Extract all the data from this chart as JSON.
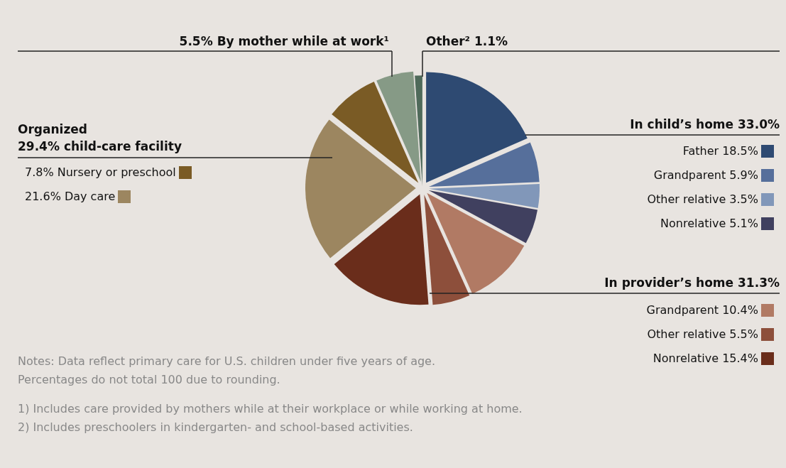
{
  "chart_data": {
    "type": "pie",
    "categories": [
      "Father",
      "Grandparent",
      "Other relative",
      "Nonrelative",
      "Grandparent",
      "Other relative",
      "Nonrelative",
      "Day care",
      "Nursery or preschool",
      "By mother while at work¹",
      "Other²"
    ],
    "values": [
      18.5,
      5.9,
      3.5,
      5.1,
      10.4,
      5.5,
      15.4,
      21.6,
      7.8,
      5.5,
      1.1
    ],
    "value_labels": [
      "18.5%",
      "5.9%",
      "3.5%",
      "5.1%",
      "10.4%",
      "5.5%",
      "15.4%",
      "21.6%",
      "7.8%",
      "5.5%",
      "1.1%"
    ],
    "colors": [
      "#2e4a72",
      "#566f9b",
      "#8197b9",
      "#40405f",
      "#b17a64",
      "#8d4f3b",
      "#6a2d1b",
      "#9c8660",
      "#7a5b25",
      "#869a86",
      "#4f6a5a"
    ],
    "legend": "bottom left",
    "annotations": [
      "In child’s home 33.0%",
      "In provider’s home 31.3%",
      "Organized\n29.4% child-care facility",
      "Notes: Data reflect primary care for U.S. children under five years of age.\nPercentages do not total 100 due to rounding.",
      "1) Includes care provided by mothers while at their workplace or while working at home.\n2) Includes preschoolers in kindergarten- and school-based activities."
    ]
  }
}
